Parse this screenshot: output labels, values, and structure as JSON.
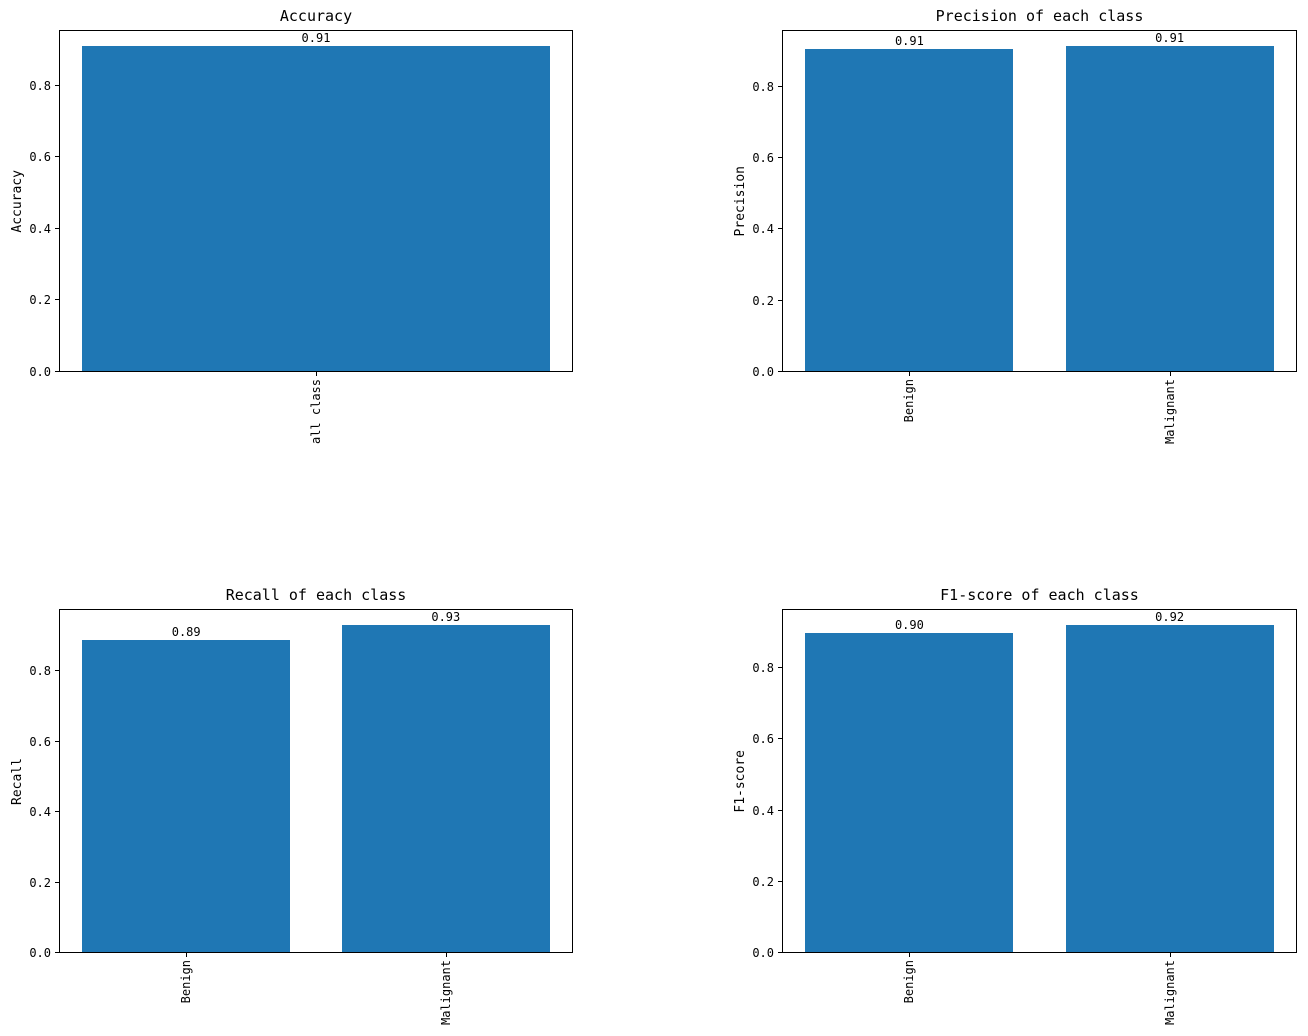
{
  "figure": {
    "background": "#ffffff",
    "bar_color": "#1f77b4",
    "text_color": "#000000"
  },
  "chart_data": [
    {
      "type": "bar",
      "title": "Accuracy",
      "ylabel": "Accuracy",
      "xlabel": "",
      "categories": [
        "all class"
      ],
      "values": [
        0.91
      ],
      "value_labels": [
        "0.91"
      ],
      "bar_heights": [
        0.91
      ],
      "ylim": [
        0,
        0.9555
      ],
      "yticks": [
        "0.0",
        "0.2",
        "0.4",
        "0.6",
        "0.8"
      ],
      "grid": false,
      "legend": null,
      "bar_color": "#1f77b4"
    },
    {
      "type": "bar",
      "title": "Precision of each class",
      "ylabel": "Precision",
      "xlabel": "",
      "categories": [
        "Benign",
        "Malignant"
      ],
      "values": [
        0.91,
        0.91
      ],
      "value_labels": [
        "0.91",
        "0.91"
      ],
      "bar_heights": [
        0.905,
        0.913
      ],
      "ylim": [
        0,
        0.9587
      ],
      "yticks": [
        "0.0",
        "0.2",
        "0.4",
        "0.6",
        "0.8"
      ],
      "grid": false,
      "legend": null,
      "bar_color": "#1f77b4"
    },
    {
      "type": "bar",
      "title": "Recall of each class",
      "ylabel": "Recall",
      "xlabel": "",
      "categories": [
        "Benign",
        "Malignant"
      ],
      "values": [
        0.89,
        0.93
      ],
      "value_labels": [
        "0.89",
        "0.93"
      ],
      "bar_heights": [
        0.89,
        0.93
      ],
      "ylim": [
        0,
        0.9765
      ],
      "yticks": [
        "0.0",
        "0.2",
        "0.4",
        "0.6",
        "0.8"
      ],
      "grid": false,
      "legend": null,
      "bar_color": "#1f77b4"
    },
    {
      "type": "bar",
      "title": "F1-score of each class",
      "ylabel": "F1-score",
      "xlabel": "",
      "categories": [
        "Benign",
        "Malignant"
      ],
      "values": [
        0.9,
        0.92
      ],
      "value_labels": [
        "0.90",
        "0.92"
      ],
      "bar_heights": [
        0.9,
        0.92
      ],
      "ylim": [
        0,
        0.966
      ],
      "yticks": [
        "0.0",
        "0.2",
        "0.4",
        "0.6",
        "0.8"
      ],
      "grid": false,
      "legend": null,
      "bar_color": "#1f77b4"
    }
  ]
}
